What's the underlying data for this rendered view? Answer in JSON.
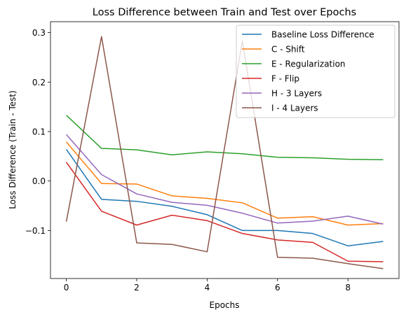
{
  "chart_data": {
    "type": "line",
    "title": "Loss Difference between Train and Test over Epochs",
    "xlabel": "Epochs",
    "ylabel": "Loss Difference (Train - Test)",
    "xlim": [
      -0.45,
      9.45
    ],
    "ylim": [
      -0.197,
      0.322
    ],
    "xticks": [
      0,
      2,
      4,
      6,
      8
    ],
    "yticks": [
      -0.1,
      0.0,
      0.1,
      0.2,
      0.3
    ],
    "ytick_labels": [
      "−0.1",
      "0.0",
      "0.1",
      "0.2",
      "0.3"
    ],
    "grid": false,
    "legend_position": "top-right",
    "x": [
      0,
      1,
      2,
      3,
      4,
      5,
      6,
      7,
      8,
      9
    ],
    "series": [
      {
        "name": "Baseline Loss Difference",
        "color": "#1f77b4",
        "values": [
          0.064,
          -0.037,
          -0.041,
          -0.051,
          -0.068,
          -0.1,
          -0.1,
          -0.106,
          -0.131,
          -0.122
        ]
      },
      {
        "name": "C - Shift",
        "color": "#ff7f0e",
        "values": [
          0.079,
          -0.005,
          -0.006,
          -0.03,
          -0.035,
          -0.044,
          -0.075,
          -0.072,
          -0.089,
          -0.086
        ]
      },
      {
        "name": "E - Regularization",
        "color": "#2ca02c",
        "values": [
          0.133,
          0.066,
          0.063,
          0.053,
          0.059,
          0.055,
          0.048,
          0.047,
          0.044,
          0.043
        ]
      },
      {
        "name": "F - Flip",
        "color": "#d62728",
        "values": [
          0.038,
          -0.061,
          -0.089,
          -0.069,
          -0.08,
          -0.106,
          -0.119,
          -0.124,
          -0.162,
          -0.163
        ]
      },
      {
        "name": "H - 3 Layers",
        "color": "#9467bd",
        "values": [
          0.094,
          0.013,
          -0.026,
          -0.043,
          -0.049,
          -0.065,
          -0.085,
          -0.081,
          -0.071,
          -0.087
        ]
      },
      {
        "name": "I - 4 Layers",
        "color": "#8c564b",
        "values": [
          -0.082,
          0.292,
          -0.125,
          -0.128,
          -0.143,
          0.283,
          -0.154,
          -0.156,
          -0.167,
          -0.177
        ]
      }
    ]
  }
}
